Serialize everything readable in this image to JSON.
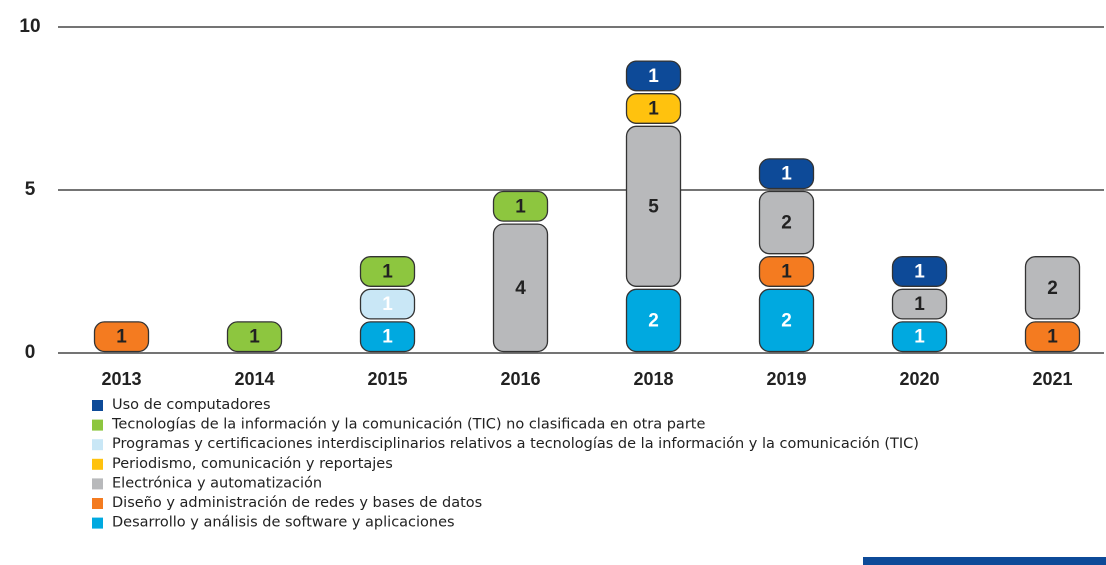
{
  "chart_data": {
    "type": "stacked_bar",
    "categories": [
      "2013",
      "2014",
      "2015",
      "2016",
      "2018",
      "2019",
      "2020",
      "2021"
    ],
    "series": [
      {
        "name": "Uso de computadores",
        "color": "#0d4a98",
        "values": [
          null,
          null,
          null,
          null,
          1,
          1,
          1,
          null
        ]
      },
      {
        "name": "Tecnologías de la información y la comunicación (TIC) no clasificada en otra parte",
        "color": "#8dc63f",
        "values": [
          null,
          1,
          1,
          1,
          null,
          null,
          null,
          null
        ]
      },
      {
        "name": "Programas y certificaciones interdisciplinarios relativos a tecnologías de la información y la comunicación (TIC)",
        "color": "#c9e7f6",
        "values": [
          null,
          null,
          1,
          null,
          null,
          null,
          null,
          null
        ]
      },
      {
        "name": "Periodismo, comunicación y reportajes",
        "color": "#ffc20e",
        "values": [
          null,
          null,
          null,
          null,
          1,
          null,
          null,
          null
        ]
      },
      {
        "name": "Electrónica y automatización",
        "color": "#b8b9bb",
        "values": [
          null,
          null,
          null,
          4,
          5,
          2,
          1,
          2
        ]
      },
      {
        "name": "Diseño y administración de redes y bases de datos",
        "color": "#f47b20",
        "values": [
          1,
          null,
          null,
          null,
          null,
          1,
          null,
          1
        ]
      },
      {
        "name": "Desarrollo y análisis de software y aplicaciones",
        "color": "#00a9e0",
        "values": [
          null,
          null,
          1,
          null,
          2,
          2,
          1,
          null
        ]
      }
    ],
    "ylim": [
      0,
      10
    ],
    "yticks": [
      0,
      5,
      10
    ],
    "grid": true
  }
}
